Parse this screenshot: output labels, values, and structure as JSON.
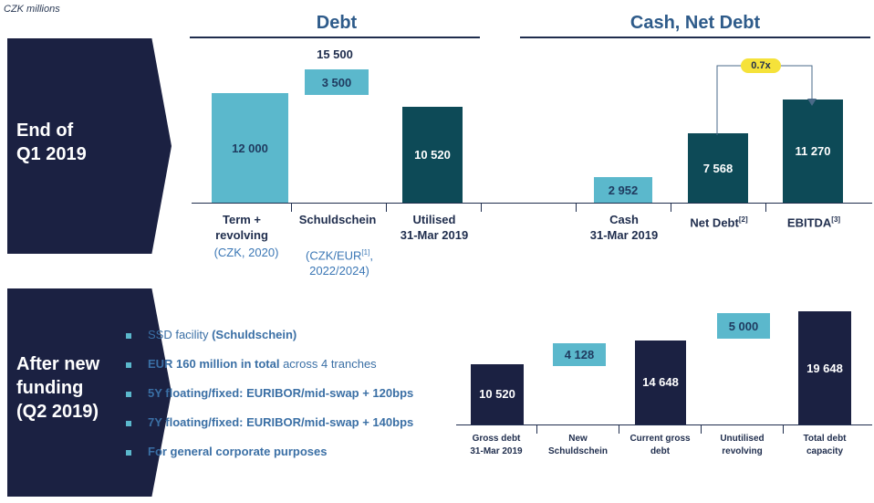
{
  "unit_label": "CZK millions",
  "sections": {
    "debt": "Debt",
    "cash_net_debt": "Cash, Net Debt"
  },
  "banners": {
    "q1": [
      "End of",
      "Q1 2019"
    ],
    "q2": [
      "After new",
      "funding",
      "(Q2 2019)"
    ]
  },
  "ratio_label": "0.7x",
  "bullets": [
    {
      "text": "SSD facility ",
      "bold": "(Schuldschein)",
      "after": ""
    },
    {
      "text": "",
      "bold": "EUR 160 million in total",
      "after": " across 4 tranches"
    },
    {
      "text": "",
      "bold": "5Y floating/fixed: EURIBOR/mid-swap + 120bps",
      "after": ""
    },
    {
      "text": "",
      "bold": "7Y floating/fixed: EURIBOR/mid-swap + 140bps",
      "after": ""
    },
    {
      "text": "",
      "bold": "For general corporate purposes",
      "after": ""
    }
  ],
  "colors": {
    "light": "#5bb8cc",
    "teal": "#0d4a57",
    "navy": "#1b2142",
    "ratio": "#f5e23a"
  },
  "chart_data": [
    {
      "type": "bar",
      "categories": [
        {
          "label": "Term + revolving",
          "sub": "(CZK, 2020)"
        },
        {
          "label": "Schuldschein",
          "sub": "(CZK/EUR[1], 2022/2024)"
        },
        {
          "label": "Utilised 31-Mar 2019",
          "sub": ""
        },
        {
          "label": "Cash 31-Mar 2019",
          "sub": ""
        },
        {
          "label": "Net Debt[2]",
          "sub": ""
        },
        {
          "label": "EBITDA[3]",
          "sub": ""
        }
      ],
      "values": [
        12000,
        3500,
        10520,
        2952,
        7568,
        11270
      ],
      "value_labels": [
        "12 000",
        "3 500",
        "10 520",
        "2 952",
        "7 568",
        "11 270"
      ],
      "stack_total_label": "15 500",
      "stack_total": 15500,
      "annotation": "0.7x"
    },
    {
      "type": "bar",
      "categories": [
        "Gross debt 31-Mar 2019",
        "New Schuldschein",
        "Current gross debt",
        "Unutilised revolving",
        "Total debt capacity"
      ],
      "values": [
        10520,
        4128,
        14648,
        5000,
        19648
      ],
      "value_labels": [
        "10 520",
        "4 128",
        "14 648",
        "5 000",
        "19 648"
      ]
    }
  ]
}
